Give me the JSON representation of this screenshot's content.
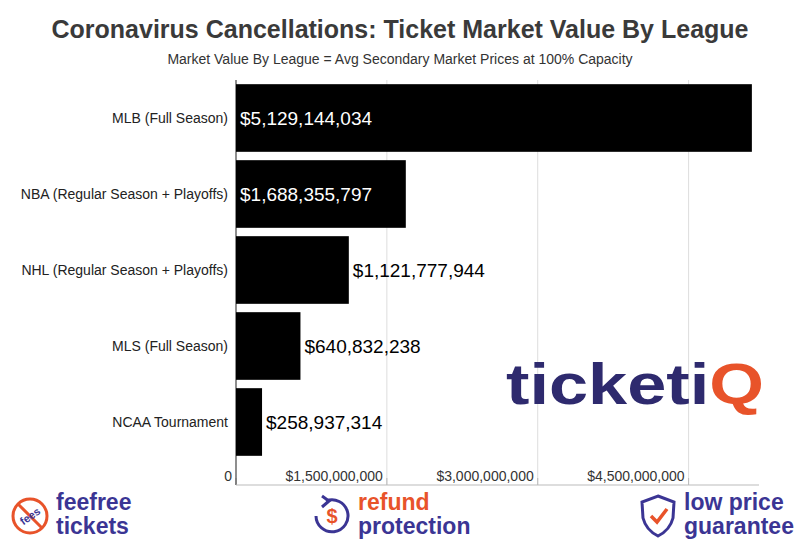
{
  "chart_data": {
    "type": "bar",
    "orientation": "horizontal",
    "title": "Coronavirus Cancellations: Ticket Market Value By League",
    "subtitle": "Market Value By League = Avg Secondary Market Prices at 100% Capacity",
    "categories": [
      "MLB (Full Season)",
      "NBA (Regular Season + Playoffs)",
      "NHL (Regular Season + Playoffs)",
      "MLS (Full Season)",
      "NCAA Tournament"
    ],
    "values": [
      5129144034,
      1688355797,
      1121777944,
      640832238,
      258937314
    ],
    "value_labels": [
      "$5,129,144,034",
      "$1,688,355,797",
      "$1,121,777,944",
      "$640,832,238",
      "$258,937,314"
    ],
    "color": "#000000",
    "xlim": [
      0,
      5200000000
    ],
    "xticks": [
      0,
      {
        "value": 1500000000,
        "label": "$1,500,000,000"
      },
      {
        "value": 3000000000,
        "label": "$3,000,000,000"
      },
      {
        "value": 4500000000,
        "label": "$4,500,000,000"
      }
    ],
    "grid": true,
    "data_labels": true
  },
  "branding": {
    "logo": "ticketiQ",
    "badges": [
      {
        "icon_text": "fees",
        "lines": [
          "feefree",
          "tickets"
        ]
      },
      {
        "icon_text": "$",
        "lines": [
          "refund",
          "protection"
        ]
      },
      {
        "lines": [
          "low price",
          "guarantee"
        ]
      }
    ]
  }
}
